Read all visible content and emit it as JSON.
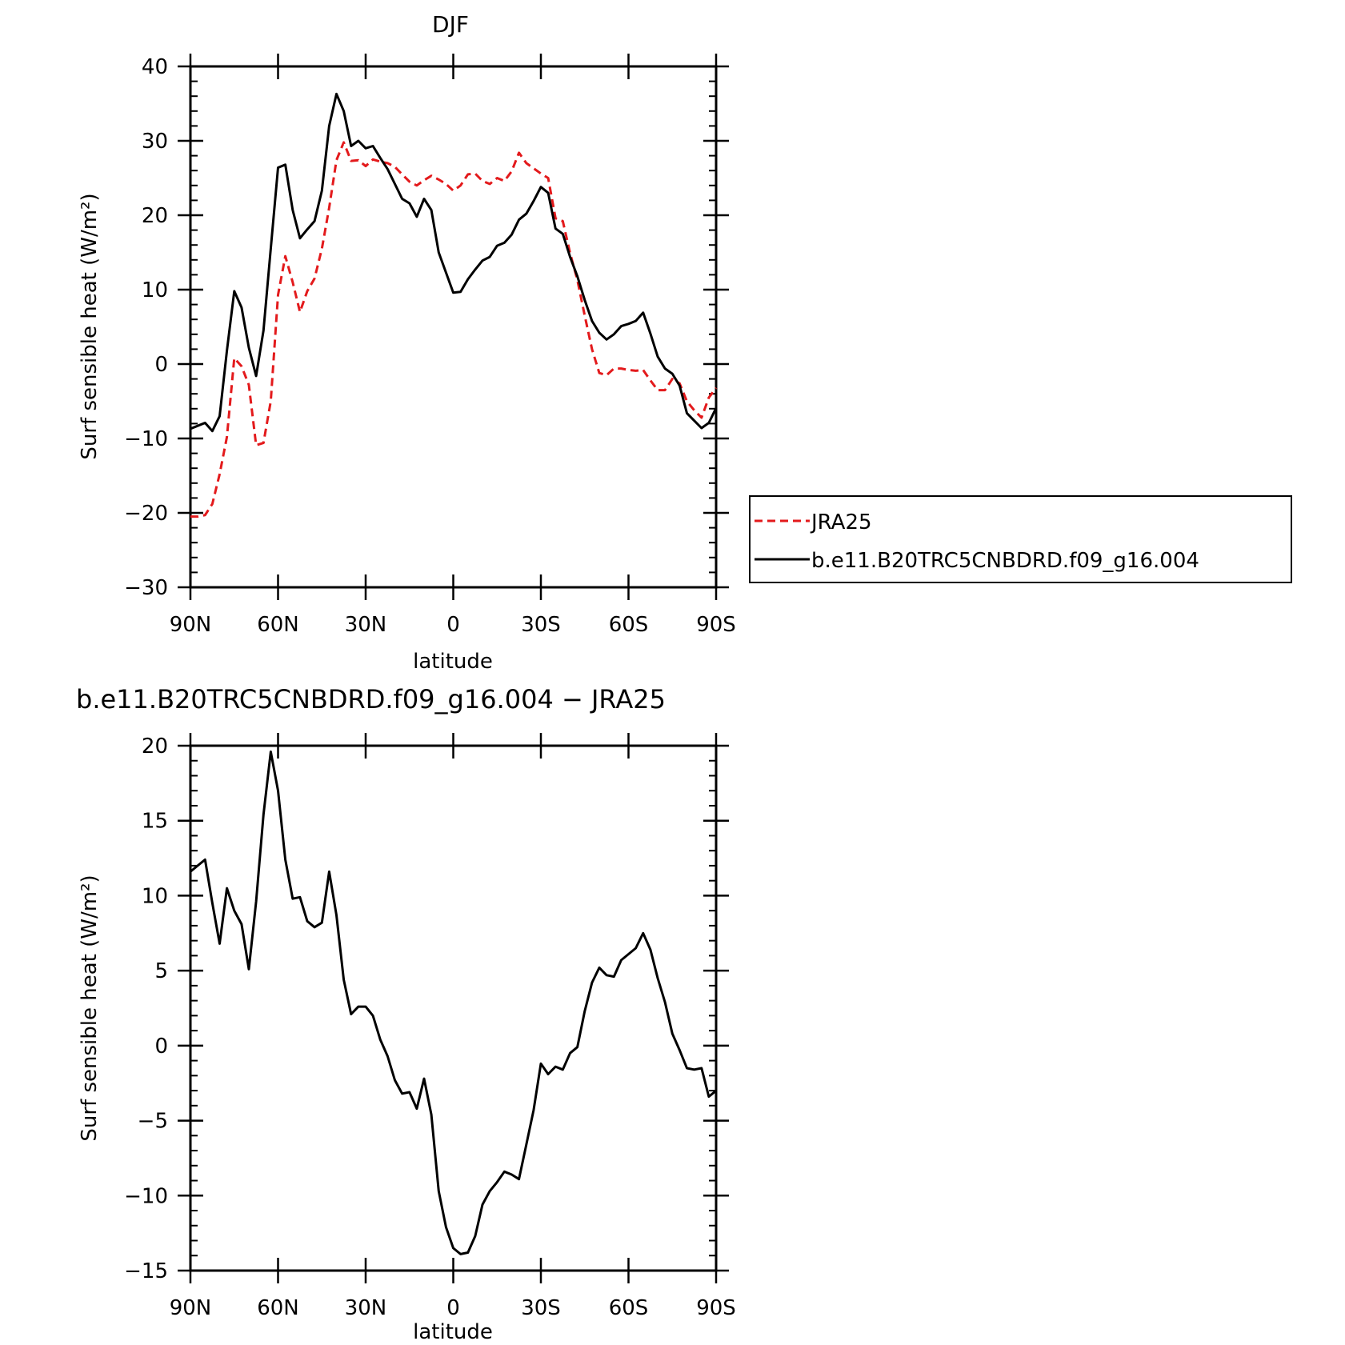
{
  "chart_data": [
    {
      "type": "line",
      "title": "DJF",
      "xlabel": "latitude",
      "ylabel": "Surf sensible heat (W/m²)",
      "xlim": [
        90,
        -90
      ],
      "ylim": [
        -30,
        40
      ],
      "x_ticks": [
        {
          "value": 90,
          "label": "90N"
        },
        {
          "value": 60,
          "label": "60N"
        },
        {
          "value": 30,
          "label": "30N"
        },
        {
          "value": 0,
          "label": "0"
        },
        {
          "value": -30,
          "label": "30S"
        },
        {
          "value": -60,
          "label": "60S"
        },
        {
          "value": -90,
          "label": "90S"
        }
      ],
      "y_ticks": [
        {
          "value": 40,
          "label": "40"
        },
        {
          "value": 30,
          "label": "30"
        },
        {
          "value": 20,
          "label": "20"
        },
        {
          "value": 10,
          "label": "10"
        },
        {
          "value": 0,
          "label": "0"
        },
        {
          "value": -10,
          "label": "−10"
        },
        {
          "value": -20,
          "label": "−20"
        },
        {
          "value": -30,
          "label": "−30"
        }
      ],
      "legend": {
        "placement": "right",
        "entries": [
          "JRA25",
          "b.e11.B20TRC5CNBDRD.f09_g16.004"
        ]
      },
      "series": [
        {
          "name": "JRA25",
          "color": "#e31a1c",
          "dash": "dashed",
          "x": [
            90,
            87.5,
            85,
            82.5,
            80,
            77.5,
            75,
            72.5,
            70,
            67.5,
            65,
            62.5,
            60,
            57.5,
            55,
            52.5,
            50,
            47.5,
            45,
            42.5,
            40,
            37.5,
            35,
            32.5,
            30,
            27.5,
            25,
            22.5,
            20,
            17.5,
            15,
            12.5,
            10,
            7.5,
            5,
            2.5,
            0,
            -2.5,
            -5,
            -7.5,
            -10,
            -12.5,
            -15,
            -17.5,
            -20,
            -22.5,
            -25,
            -27.5,
            -30,
            -32.5,
            -35,
            -37.5,
            -40,
            -42.5,
            -45,
            -47.5,
            -50,
            -52.5,
            -55,
            -57.5,
            -60,
            -62.5,
            -65,
            -67.5,
            -70,
            -72.5,
            -75,
            -77.5,
            -80,
            -82.5,
            -85,
            -87.5,
            -90
          ],
          "y": [
            -20.5,
            -20.5,
            -20.3,
            -18.8,
            -14.8,
            -9.8,
            0.8,
            -0.3,
            -2.8,
            -10.9,
            -10.6,
            -5,
            9.3,
            14.5,
            11,
            7,
            9.8,
            11.5,
            15.5,
            21,
            27.4,
            29.8,
            27.3,
            27.4,
            26.6,
            27.5,
            27.2,
            27,
            26.5,
            25.5,
            24.5,
            24,
            24.7,
            25.3,
            24.8,
            24.2,
            23.3,
            24,
            25.5,
            25.6,
            24.6,
            24.2,
            25,
            24.6,
            25.9,
            28.4,
            27,
            26.3,
            25.6,
            25,
            19.6,
            19.2,
            14.9,
            11.3,
            6.5,
            2,
            -1.2,
            -1.5,
            -0.6,
            -0.6,
            -0.8,
            -0.9,
            -0.8,
            -2.2,
            -3.5,
            -3.5,
            -2,
            -2.6,
            -5,
            -6.2,
            -7.2,
            -4.5,
            -3.2
          ]
        },
        {
          "name": "b.e11.B20TRC5CNBDRD.f09_g16.004",
          "color": "#000000",
          "dash": "solid",
          "x": [
            90,
            87.5,
            85,
            82.5,
            80,
            77.5,
            75,
            72.5,
            70,
            67.5,
            65,
            62.5,
            60,
            57.5,
            55,
            52.5,
            50,
            47.5,
            45,
            42.5,
            40,
            37.5,
            35,
            32.5,
            30,
            27.5,
            25,
            22.5,
            20,
            17.5,
            15,
            12.5,
            10,
            7.5,
            5,
            2.5,
            0,
            -2.5,
            -5,
            -7.5,
            -10,
            -12.5,
            -15,
            -17.5,
            -20,
            -22.5,
            -25,
            -27.5,
            -30,
            -32.5,
            -35,
            -37.5,
            -40,
            -42.5,
            -45,
            -47.5,
            -50,
            -52.5,
            -55,
            -57.5,
            -60,
            -62.5,
            -65,
            -67.5,
            -70,
            -72.5,
            -75,
            -77.5,
            -80,
            -82.5,
            -85,
            -87.5,
            -90
          ],
          "y": [
            -8.7,
            -8.3,
            -7.9,
            -9,
            -7,
            1.8,
            9.8,
            7.6,
            2.2,
            -1.6,
            4.5,
            15.5,
            26.4,
            26.8,
            20.7,
            16.9,
            18.1,
            19.2,
            23.3,
            32,
            36.3,
            34,
            29.3,
            30,
            29,
            29.3,
            27.7,
            26.2,
            24.2,
            22.2,
            21.6,
            19.8,
            22.2,
            20.7,
            15,
            12.3,
            9.6,
            9.7,
            11.4,
            12.7,
            13.9,
            14.4,
            15.9,
            16.3,
            17.4,
            19.4,
            20.2,
            21.9,
            23.8,
            23,
            18.2,
            17.5,
            14.4,
            11.8,
            8.6,
            5.8,
            4.2,
            3.3,
            4,
            5.1,
            5.4,
            5.8,
            6.9,
            4.1,
            1,
            -0.6,
            -1.3,
            -2.9,
            -6.6,
            -7.6,
            -8.6,
            -7.9,
            -5.9
          ]
        }
      ]
    },
    {
      "type": "line",
      "title": "b.e11.B20TRC5CNBDRD.f09_g16.004 − JRA25",
      "xlabel": "latitude",
      "ylabel": "Surf sensible heat (W/m²)",
      "xlim": [
        90,
        -90
      ],
      "ylim": [
        -15,
        20
      ],
      "x_ticks": [
        {
          "value": 90,
          "label": "90N"
        },
        {
          "value": 60,
          "label": "60N"
        },
        {
          "value": 30,
          "label": "30N"
        },
        {
          "value": 0,
          "label": "0"
        },
        {
          "value": -30,
          "label": "30S"
        },
        {
          "value": -60,
          "label": "60S"
        },
        {
          "value": -90,
          "label": "90S"
        }
      ],
      "y_ticks": [
        {
          "value": 20,
          "label": "20"
        },
        {
          "value": 15,
          "label": "15"
        },
        {
          "value": 10,
          "label": "10"
        },
        {
          "value": 5,
          "label": "5"
        },
        {
          "value": 0,
          "label": "0"
        },
        {
          "value": -5,
          "label": "−5"
        },
        {
          "value": -10,
          "label": "−10"
        },
        {
          "value": -15,
          "label": "−15"
        }
      ],
      "series": [
        {
          "color": "#000000",
          "dash": "solid",
          "x": [
            90,
            87.5,
            85,
            82.5,
            80,
            77.5,
            75,
            72.5,
            70,
            67.5,
            65,
            62.5,
            60,
            57.5,
            55,
            52.5,
            50,
            47.5,
            45,
            42.5,
            40,
            37.5,
            35,
            32.5,
            30,
            27.5,
            25,
            22.5,
            20,
            17.5,
            15,
            12.5,
            10,
            7.5,
            5,
            2.5,
            0,
            -2.5,
            -5,
            -7.5,
            -10,
            -12.5,
            -15,
            -17.5,
            -20,
            -22.5,
            -25,
            -27.5,
            -30,
            -32.5,
            -35,
            -37.5,
            -40,
            -42.5,
            -45,
            -47.5,
            -50,
            -52.5,
            -55,
            -57.5,
            -60,
            -62.5,
            -65,
            -67.5,
            -70,
            -72.5,
            -75,
            -77.5,
            -80,
            -82.5,
            -85,
            -87.5,
            -90
          ],
          "y": [
            11.6,
            12,
            12.4,
            9.5,
            6.8,
            10.5,
            9,
            8.1,
            5.1,
            9.6,
            15.4,
            19.6,
            17,
            12.4,
            9.8,
            9.9,
            8.3,
            7.9,
            8.2,
            11.6,
            8.7,
            4.4,
            2.1,
            2.6,
            2.6,
            2.0,
            0.4,
            -0.7,
            -2.3,
            -3.2,
            -3.1,
            -4.2,
            -2.2,
            -4.6,
            -9.7,
            -12.1,
            -13.5,
            -13.9,
            -13.8,
            -12.7,
            -10.6,
            -9.7,
            -9.1,
            -8.4,
            -8.6,
            -8.9,
            -6.6,
            -4.3,
            -1.2,
            -1.9,
            -1.4,
            -1.6,
            -0.5,
            -0.1,
            2.3,
            4.2,
            5.2,
            4.7,
            4.6,
            5.7,
            6.1,
            6.5,
            7.5,
            6.4,
            4.5,
            2.9,
            0.8,
            -0.3,
            -1.5,
            -1.6,
            -1.5,
            -3.4,
            -3
          ]
        }
      ]
    }
  ]
}
